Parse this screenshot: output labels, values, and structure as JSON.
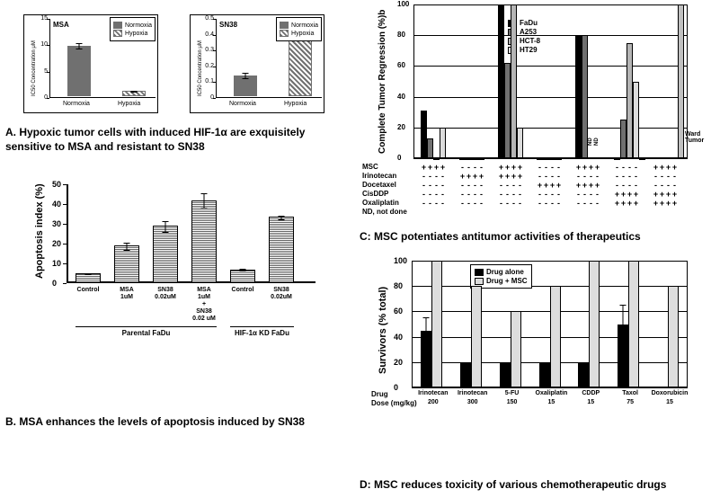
{
  "panelA": {
    "caption": "A. Hypoxic tumor cells with induced HIF-1α are exquisitely sensitive to MSA and resistant to SN38",
    "charts": [
      {
        "title": "MSA",
        "ylabel": "IC50 Concentration μM",
        "ylim": [
          0,
          15
        ],
        "yticks": [
          0,
          5,
          10,
          15
        ],
        "categories": [
          "Normoxia",
          "Hypoxia"
        ],
        "normoxia_val": 9.5,
        "normoxia_err": 0.6,
        "hypoxia_val": 1.0,
        "hypoxia_err": 0.2
      },
      {
        "title": "SN38",
        "ylabel": "IC50 Concentration μM",
        "ylim": [
          0,
          0.5
        ],
        "yticks": [
          0,
          0.1,
          0.2,
          0.3,
          0.4,
          0.5
        ],
        "categories": [
          "Normoxia",
          "Hypoxia"
        ],
        "normoxia_val": 0.13,
        "normoxia_err": 0.02,
        "hypoxia_val": 0.42,
        "hypoxia_err": 0.04
      }
    ],
    "legend": [
      "Normoxia",
      "Hypoxia"
    ]
  },
  "panelB": {
    "caption": "B. MSA enhances the levels of apoptosis induced by SN38",
    "ylabel": "Apoptosis index (%)",
    "ylim": [
      0,
      50
    ],
    "yticks": [
      0,
      10,
      20,
      30,
      40,
      50
    ],
    "groups": [
      {
        "label": "Control",
        "val": 5,
        "err": 0.5,
        "section": "Parental FaDu"
      },
      {
        "label": "MSA\n1uM",
        "val": 19,
        "err": 2,
        "section": "Parental FaDu"
      },
      {
        "label": "SN38\n0.02uM",
        "val": 29,
        "err": 3,
        "section": "Parental FaDu"
      },
      {
        "label": "MSA\n1uM\n+\nSN38\n0.02 uM",
        "val": 42,
        "err": 4,
        "section": "Parental FaDu"
      },
      {
        "label": "Control",
        "val": 7,
        "err": 0.8,
        "section": "HIF-1α KD FaDu"
      },
      {
        "label": "SN38\n0.02uM",
        "val": 33.5,
        "err": 1,
        "section": "HIF-1α KD FaDu"
      }
    ],
    "sections": [
      "Parental FaDu",
      "HIF-1α KD FaDu"
    ]
  },
  "panelC": {
    "caption": "C: MSC potentiates antitumor activities of therapeutics",
    "ylabel": "Complete Tumor Regression (%)b",
    "ylim": [
      0,
      100
    ],
    "yticks": [
      0,
      20,
      40,
      60,
      80,
      100
    ],
    "legend": [
      "FaDu",
      "A253",
      "HCT-8",
      "HT29"
    ],
    "legend_colors": [
      "#000000",
      "#707070",
      "#b5b5b5",
      "#dcdcdc"
    ],
    "ward_label": "Ward Tumor",
    "rows": [
      "MSC",
      "Irinotecan",
      "Docetaxel",
      "CisDDP",
      "Oxaliplatin",
      "ND, not done"
    ],
    "groups": [
      {
        "bars": [
          31,
          13,
          0,
          20
        ],
        "plusrows": [
          0
        ]
      },
      {
        "bars": [
          0,
          0,
          0,
          0
        ],
        "plusrows": [
          1
        ]
      },
      {
        "bars": [
          100,
          62,
          100,
          20
        ],
        "plusrows": [
          0,
          1
        ]
      },
      {
        "bars": [
          0,
          0,
          0,
          0
        ],
        "plusrows": [
          2
        ]
      },
      {
        "bars": [
          80,
          80,
          null,
          null
        ],
        "plusrows": [
          0,
          2
        ],
        "nd": [
          2,
          3
        ]
      },
      {
        "bars": [
          0,
          25,
          75,
          50
        ],
        "plusrows": [
          3,
          4
        ],
        "ward": 0
      },
      {
        "bars": [
          null,
          null,
          null,
          null
        ],
        "plusrows": [
          0,
          3,
          4
        ],
        "ward": 100
      }
    ]
  },
  "panelD": {
    "caption": "D: MSC reduces toxicity of various chemotherapeutic drugs",
    "ylabel": "Survivors (% total)",
    "ylim": [
      0,
      100
    ],
    "yticks": [
      0,
      20,
      40,
      60,
      80,
      100
    ],
    "legend": [
      "Drug alone",
      "Drug + MSC"
    ],
    "legend_colors": [
      "#000000",
      "#dddddd"
    ],
    "drug_label": "Drug",
    "dose_label": "Dose (mg/kg)",
    "drugs": [
      {
        "name": "Irinotecan",
        "dose": "200",
        "alone": 45,
        "alone_err": 10,
        "msc": 100
      },
      {
        "name": "Irinotecan",
        "dose": "300",
        "alone": 20,
        "alone_err": 0,
        "msc": 80
      },
      {
        "name": "5-FU",
        "dose": "150",
        "alone": 20,
        "alone_err": 0,
        "msc": 60
      },
      {
        "name": "Oxaliplatin",
        "dose": "15",
        "alone": 20,
        "alone_err": 0,
        "msc": 80
      },
      {
        "name": "CDDP",
        "dose": "15",
        "alone": 20,
        "alone_err": 0,
        "msc": 100
      },
      {
        "name": "Taxol",
        "dose": "75",
        "alone": 50,
        "alone_err": 15,
        "msc": 100
      },
      {
        "name": "Doxorubicin",
        "dose": "15",
        "alone": 0,
        "alone_err": 0,
        "msc": 80
      }
    ]
  }
}
